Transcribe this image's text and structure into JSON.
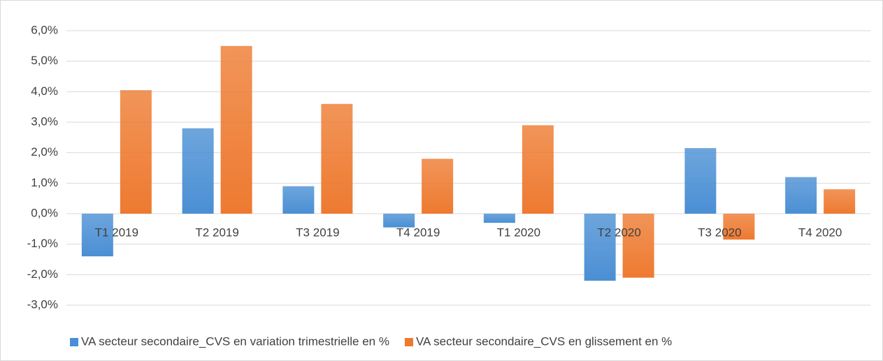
{
  "chart_data": {
    "type": "bar",
    "categories": [
      "T1 2019",
      "T2 2019",
      "T3 2019",
      "T4 2019",
      "T1 2020",
      "T2 2020",
      "T3 2020",
      "T4 2020"
    ],
    "series": [
      {
        "name": "VA secteur secondaire_CVS en variation trimestrielle en %",
        "color": "#4a8fd4",
        "values": [
          -1.4,
          2.8,
          0.9,
          -0.45,
          -0.3,
          -2.2,
          2.15,
          1.2
        ]
      },
      {
        "name": "VA secteur secondaire_CVS en glissement en %",
        "color": "#ee7a30",
        "values": [
          4.05,
          5.5,
          3.6,
          1.8,
          2.9,
          -2.1,
          -0.85,
          0.8
        ]
      }
    ],
    "ylim": [
      -3,
      6
    ],
    "yticks": [
      {
        "value": -3,
        "label": "-3,0%"
      },
      {
        "value": -2,
        "label": "-2,0%"
      },
      {
        "value": -1,
        "label": "-1,0%"
      },
      {
        "value": 0,
        "label": "0,0%"
      },
      {
        "value": 1,
        "label": "1,0%"
      },
      {
        "value": 2,
        "label": "2,0%"
      },
      {
        "value": 3,
        "label": "3,0%"
      },
      {
        "value": 4,
        "label": "4,0%"
      },
      {
        "value": 5,
        "label": "5,0%"
      },
      {
        "value": 6,
        "label": "6,0%"
      }
    ],
    "grid": true,
    "legend": "bottom"
  }
}
